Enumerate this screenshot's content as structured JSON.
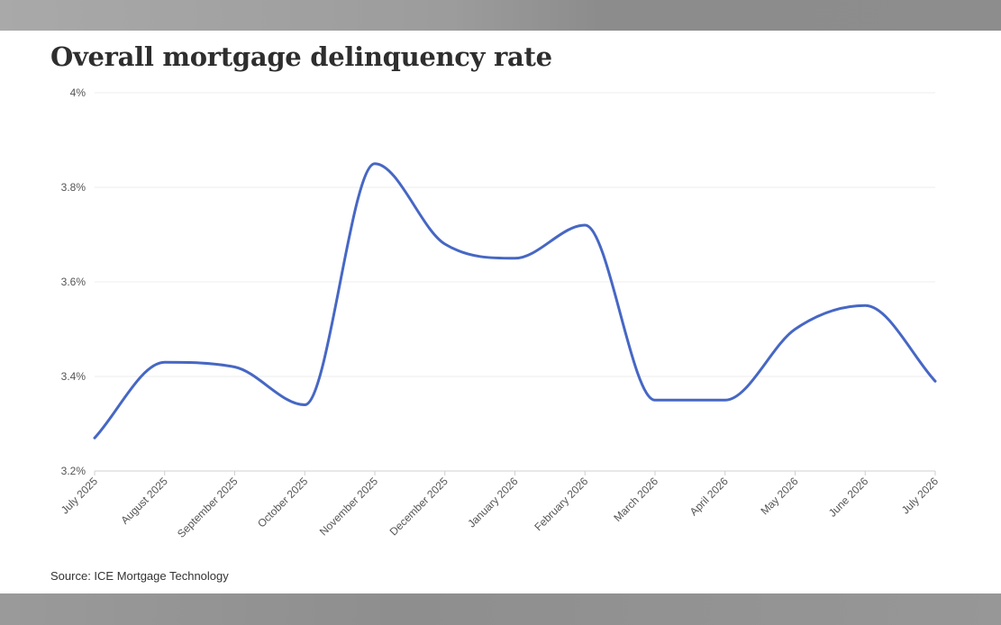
{
  "chart_data": {
    "type": "line",
    "title": "Overall mortgage delinquency rate",
    "source": "Source: ICE Mortgage Technology",
    "categories": [
      "July 2025",
      "August 2025",
      "September 2025",
      "October 2025",
      "November 2025",
      "December 2025",
      "January 2026",
      "February 2026",
      "March 2026",
      "April 2026",
      "May 2026",
      "June 2026",
      "July 2026"
    ],
    "series": [
      {
        "values": [
          3.27,
          3.43,
          3.42,
          3.34,
          3.85,
          3.68,
          3.65,
          3.72,
          3.35,
          3.35,
          3.5,
          3.55,
          3.39
        ]
      }
    ],
    "y_ticks": [
      "3.2%",
      "3.4%",
      "3.6%",
      "3.8%",
      "4%"
    ],
    "y_tick_values": [
      3.2,
      3.4,
      3.6,
      3.8,
      4.0
    ],
    "ylim": [
      3.2,
      4.0
    ],
    "grid": true,
    "line_color": "#4667c4"
  }
}
